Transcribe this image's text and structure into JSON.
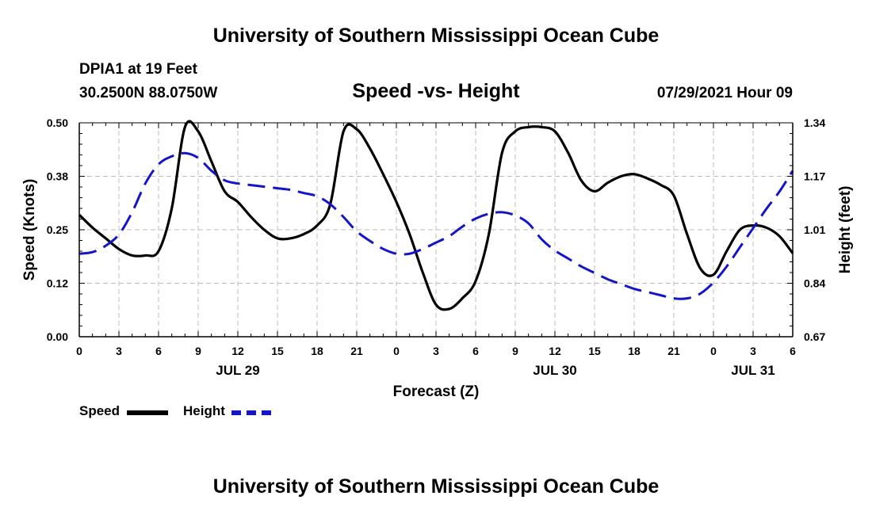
{
  "header": {
    "title": "University of Southern Mississippi Ocean Cube",
    "station": "DPIA1 at 19 Feet",
    "coordinates": "30.2500N  88.0750W",
    "subtitle": "Speed -vs- Height",
    "datetime": "07/29/2021 Hour 09"
  },
  "footer": {
    "title": "University of Southern Mississippi Ocean Cube"
  },
  "legend": {
    "speed_label": "Speed",
    "height_label": "Height"
  },
  "chart_data": {
    "type": "line",
    "title": "Speed -vs- Height",
    "xlabel": "Forecast (Z)",
    "ylabel": "Speed (Knots)",
    "y2label": "Height (feet)",
    "x_range": [
      0,
      54
    ],
    "x_tick_positions": [
      0,
      3,
      6,
      9,
      12,
      15,
      18,
      21,
      24,
      27,
      30,
      33,
      36,
      39,
      42,
      45,
      48,
      51,
      54
    ],
    "x_tick_labels": [
      "0",
      "3",
      "6",
      "9",
      "12",
      "15",
      "18",
      "21",
      "0",
      "3",
      "6",
      "9",
      "12",
      "15",
      "18",
      "21",
      "0",
      "3",
      "6"
    ],
    "date_labels": [
      {
        "x": 12,
        "label": "JUL 29"
      },
      {
        "x": 36,
        "label": "JUL 30"
      },
      {
        "x": 51,
        "label": "JUL 31"
      }
    ],
    "ylim": [
      0,
      0.5
    ],
    "y_ticks": [
      0.0,
      0.125,
      0.25,
      0.375,
      0.5
    ],
    "y_tick_labels": [
      "0.00",
      "0.12",
      "0.25",
      "0.38",
      "0.50"
    ],
    "y2lim": [
      0.67,
      1.34
    ],
    "y2_ticks": [
      0.67,
      0.8375,
      1.005,
      1.1725,
      1.34
    ],
    "y2_tick_labels": [
      "0.67",
      "0.84",
      "1.01",
      "1.17",
      "1.34"
    ],
    "grid": true,
    "series": [
      {
        "name": "Speed",
        "axis": "left",
        "color": "#000000",
        "style": "solid",
        "x": [
          0,
          1,
          2,
          3,
          4,
          5,
          6,
          7,
          8,
          9,
          10,
          11,
          12,
          13,
          14,
          15,
          16,
          17,
          18,
          19,
          20,
          21,
          22,
          23,
          24,
          25,
          26,
          27,
          28,
          29,
          30,
          31,
          32,
          33,
          34,
          35,
          36,
          37,
          38,
          39,
          40,
          41,
          42,
          43,
          44,
          45,
          46,
          47,
          48,
          49,
          50,
          51,
          52,
          53,
          54
        ],
        "values": [
          0.285,
          0.255,
          0.23,
          0.205,
          0.19,
          0.19,
          0.2,
          0.3,
          0.49,
          0.48,
          0.41,
          0.34,
          0.315,
          0.28,
          0.25,
          0.23,
          0.23,
          0.24,
          0.26,
          0.31,
          0.48,
          0.485,
          0.44,
          0.38,
          0.315,
          0.24,
          0.15,
          0.075,
          0.065,
          0.09,
          0.13,
          0.24,
          0.43,
          0.48,
          0.49,
          0.49,
          0.48,
          0.43,
          0.365,
          0.34,
          0.36,
          0.375,
          0.38,
          0.37,
          0.355,
          0.33,
          0.24,
          0.16,
          0.145,
          0.2,
          0.25,
          0.26,
          0.255,
          0.235,
          0.195
        ]
      },
      {
        "name": "Height",
        "axis": "right",
        "color": "#1515c8",
        "style": "dashed",
        "x": [
          0,
          1,
          2,
          3,
          4,
          5,
          6,
          7,
          8,
          9,
          10,
          11,
          12,
          13,
          14,
          15,
          16,
          17,
          18,
          19,
          20,
          21,
          22,
          23,
          24,
          25,
          26,
          27,
          28,
          29,
          30,
          31,
          32,
          33,
          34,
          35,
          36,
          37,
          38,
          39,
          40,
          41,
          42,
          43,
          44,
          45,
          46,
          47,
          48,
          49,
          50,
          51,
          52,
          53,
          54
        ],
        "values": [
          0.93,
          0.935,
          0.955,
          0.99,
          1.06,
          1.15,
          1.21,
          1.235,
          1.245,
          1.23,
          1.19,
          1.16,
          1.15,
          1.145,
          1.14,
          1.135,
          1.13,
          1.12,
          1.11,
          1.085,
          1.045,
          1.0,
          0.97,
          0.945,
          0.93,
          0.93,
          0.945,
          0.965,
          0.985,
          1.015,
          1.04,
          1.055,
          1.06,
          1.05,
          1.025,
          0.975,
          0.94,
          0.915,
          0.89,
          0.87,
          0.85,
          0.835,
          0.82,
          0.81,
          0.8,
          0.79,
          0.79,
          0.805,
          0.84,
          0.89,
          0.95,
          1.01,
          1.07,
          1.125,
          1.19
        ]
      }
    ]
  }
}
